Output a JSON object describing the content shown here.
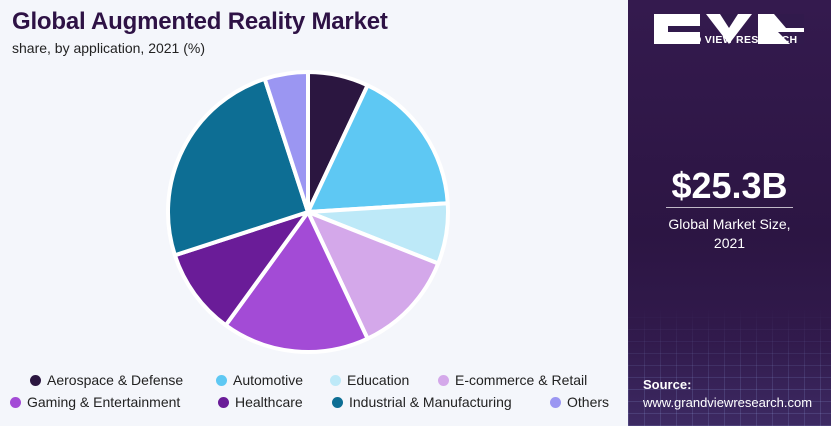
{
  "chart_data": {
    "type": "pie",
    "title": "Global Augmented Reality Market",
    "subtitle": "share, by application, 2021 (%)",
    "categories": [
      "Aerospace & Defense",
      "Automotive",
      "Education",
      "E-commerce & Retail",
      "Gaming & Entertainment",
      "Healthcare",
      "Industrial & Manufacturing",
      "Others"
    ],
    "values": [
      7,
      17,
      7,
      12,
      17,
      10,
      25,
      5
    ],
    "colors": [
      "#2b1640",
      "#5ec8f3",
      "#bde9f8",
      "#d4a8ea",
      "#a34bd6",
      "#6a1c98",
      "#0d6e94",
      "#9b96f2"
    ],
    "legend_position": "bottom",
    "start_angle_deg": 0
  },
  "legend": [
    {
      "label": "Aerospace & Defense",
      "color": "#2b1640"
    },
    {
      "label": "Automotive",
      "color": "#5ec8f3"
    },
    {
      "label": "Education",
      "color": "#bde9f8"
    },
    {
      "label": "E-commerce & Retail",
      "color": "#d4a8ea"
    },
    {
      "label": "Gaming & Entertainment",
      "color": "#a34bd6"
    },
    {
      "label": "Healthcare",
      "color": "#6a1c98"
    },
    {
      "label": "Industrial & Manufacturing",
      "color": "#0d6e94"
    },
    {
      "label": "Others",
      "color": "#9b96f2"
    }
  ],
  "brand": {
    "name": "GRAND VIEW RESEARCH",
    "logo_icon": "gvr-logo-icon"
  },
  "market": {
    "value": "$25.3B",
    "label_line1": "Global Market Size,",
    "label_line2": "2021"
  },
  "source": {
    "title": "Source:",
    "url": "www.grandviewresearch.com"
  },
  "colors": {
    "title": "#2e1245",
    "panel": "#2c1543",
    "background": "#f4f6fb"
  }
}
